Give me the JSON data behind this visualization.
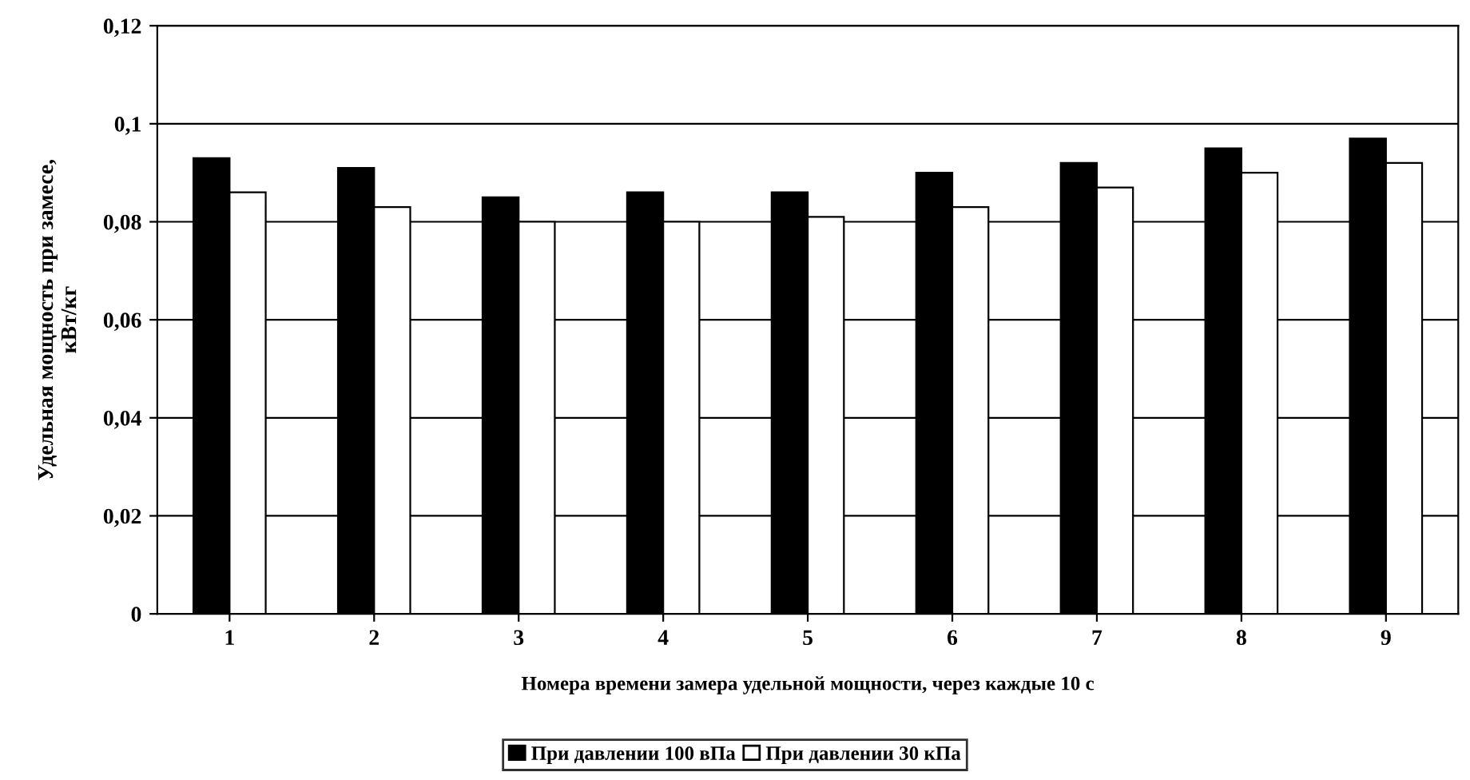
{
  "chart_data": {
    "type": "bar",
    "xlabel": "Номера времени замера удельной мощности, через каждые 10 с",
    "ylabel": "Удельная мощность при замесе,\nкВт/кг",
    "categories": [
      "1",
      "2",
      "3",
      "4",
      "5",
      "6",
      "7",
      "8",
      "9"
    ],
    "series": [
      {
        "name": "При давлении 100 вПа",
        "color": "#000000",
        "values": [
          0.093,
          0.091,
          0.085,
          0.086,
          0.086,
          0.09,
          0.092,
          0.095,
          0.097
        ]
      },
      {
        "name": "При давлении 30 кПа",
        "color": "#ffffff",
        "values": [
          0.086,
          0.083,
          0.08,
          0.08,
          0.081,
          0.083,
          0.087,
          0.09,
          0.092
        ]
      }
    ],
    "ylim": [
      0,
      0.12
    ],
    "yticks": [
      {
        "value": 0,
        "label": "0"
      },
      {
        "value": 0.02,
        "label": "0,02"
      },
      {
        "value": 0.04,
        "label": "0,04"
      },
      {
        "value": 0.06,
        "label": "0,06"
      },
      {
        "value": 0.08,
        "label": "0,08"
      },
      {
        "value": 0.1,
        "label": "0,1"
      },
      {
        "value": 0.12,
        "label": "0,12"
      }
    ],
    "grid": "y",
    "legend": "bottom"
  }
}
